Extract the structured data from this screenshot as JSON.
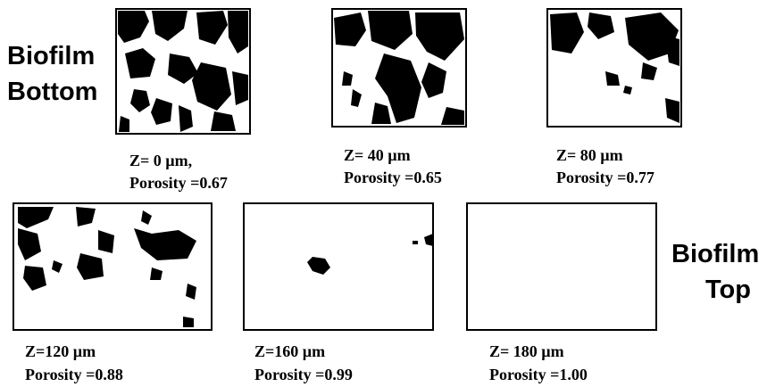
{
  "labels": {
    "bottom": [
      "Biofilm",
      "Bottom"
    ],
    "top": [
      "Biofilm",
      "Top"
    ]
  },
  "panels": [
    {
      "depth": "Z= 0 µm,",
      "porosity": "Porosity =0.67"
    },
    {
      "depth": "Z= 40 µm",
      "porosity": "Porosity =0.65"
    },
    {
      "depth": "Z= 80 µm",
      "porosity": "Porosity =0.77"
    },
    {
      "depth": "Z=120 µm",
      "porosity": "Porosity =0.88"
    },
    {
      "depth": "Z=160 µm",
      "porosity": "Porosity =0.99"
    },
    {
      "depth": "Z= 180 µm",
      "porosity": "Porosity =1.00"
    }
  ]
}
